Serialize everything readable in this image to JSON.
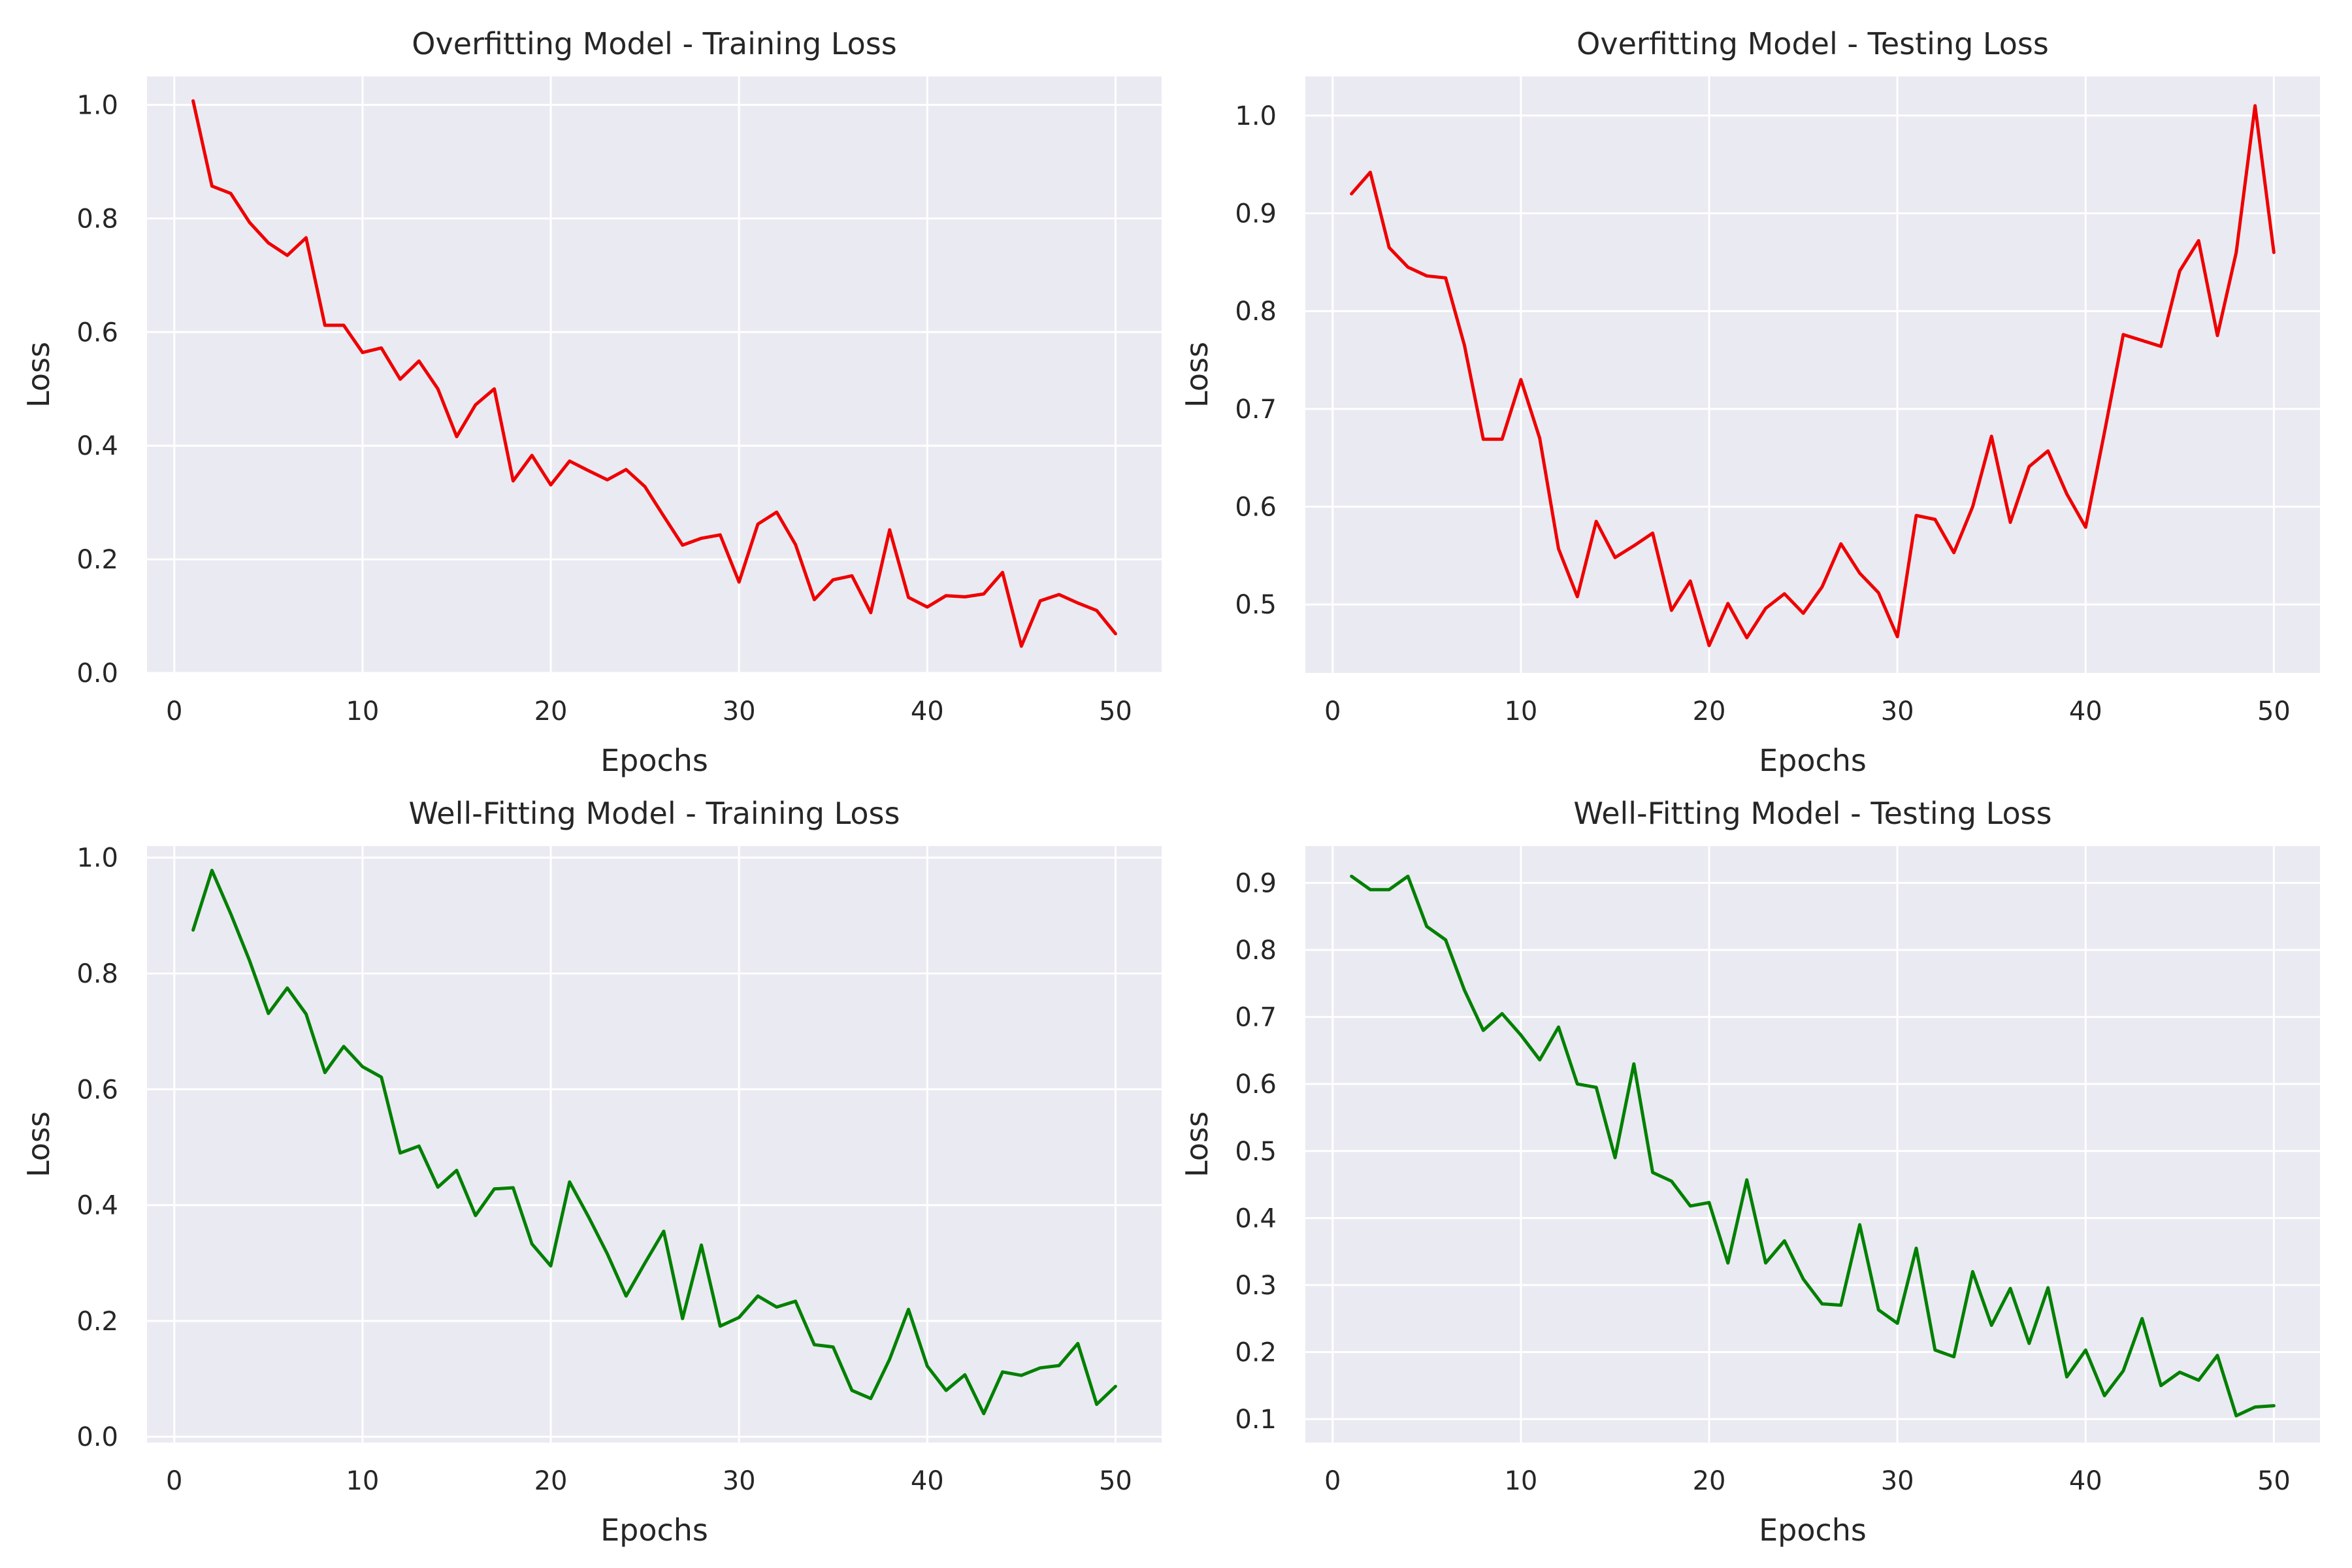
{
  "chart_data": [
    {
      "type": "line",
      "title": "Overfitting Model - Training Loss",
      "xlabel": "Epochs",
      "ylabel": "Loss",
      "xlim": [
        -1.45,
        52.45
      ],
      "ylim": [
        0.0,
        1.05
      ],
      "xticks": [
        0,
        10,
        20,
        30,
        40,
        50
      ],
      "yticks": [
        0.0,
        0.2,
        0.4,
        0.6,
        0.8,
        1.0
      ],
      "ytick_labels": [
        "0.0",
        "0.2",
        "0.4",
        "0.6",
        "0.8",
        "1.0"
      ],
      "grid": true,
      "color": "#ee0000",
      "x": [
        1,
        2,
        3,
        4,
        5,
        6,
        7,
        8,
        9,
        10,
        11,
        12,
        13,
        14,
        15,
        16,
        17,
        18,
        19,
        20,
        21,
        22,
        23,
        24,
        25,
        26,
        27,
        28,
        29,
        30,
        31,
        32,
        33,
        34,
        35,
        36,
        37,
        38,
        39,
        40,
        41,
        42,
        43,
        44,
        45,
        46,
        47,
        48,
        49,
        50
      ],
      "values": [
        1.007,
        0.857,
        0.844,
        0.793,
        0.757,
        0.735,
        0.766,
        0.612,
        0.612,
        0.564,
        0.572,
        0.517,
        0.549,
        0.5,
        0.416,
        0.472,
        0.5,
        0.338,
        0.383,
        0.331,
        0.373,
        0.356,
        0.34,
        0.358,
        0.328,
        0.276,
        0.225,
        0.237,
        0.243,
        0.16,
        0.262,
        0.283,
        0.226,
        0.129,
        0.164,
        0.171,
        0.106,
        0.252,
        0.133,
        0.116,
        0.136,
        0.134,
        0.139,
        0.177,
        0.047,
        0.127,
        0.138,
        0.123,
        0.11,
        0.069
      ]
    },
    {
      "type": "line",
      "title": "Overfitting Model - Testing Loss",
      "xlabel": "Epochs",
      "ylabel": "Loss",
      "xlim": [
        -1.45,
        52.45
      ],
      "ylim": [
        0.43,
        1.04
      ],
      "xticks": [
        0,
        10,
        20,
        30,
        40,
        50
      ],
      "yticks": [
        0.5,
        0.6,
        0.7,
        0.8,
        0.9,
        1.0
      ],
      "ytick_labels": [
        "0.5",
        "0.6",
        "0.7",
        "0.8",
        "0.9",
        "1.0"
      ],
      "grid": true,
      "color": "#ee0000",
      "x": [
        1,
        2,
        3,
        4,
        5,
        6,
        7,
        8,
        9,
        10,
        11,
        12,
        13,
        14,
        15,
        16,
        17,
        18,
        19,
        20,
        21,
        22,
        23,
        24,
        25,
        26,
        27,
        28,
        29,
        30,
        31,
        32,
        33,
        34,
        35,
        36,
        37,
        38,
        39,
        40,
        41,
        42,
        43,
        44,
        45,
        46,
        47,
        48,
        49,
        50
      ],
      "values": [
        0.92,
        0.942,
        0.865,
        0.845,
        0.836,
        0.834,
        0.765,
        0.669,
        0.669,
        0.73,
        0.67,
        0.557,
        0.508,
        0.585,
        0.548,
        0.56,
        0.573,
        0.494,
        0.524,
        0.458,
        0.501,
        0.466,
        0.496,
        0.511,
        0.491,
        0.518,
        0.562,
        0.532,
        0.512,
        0.467,
        0.591,
        0.587,
        0.553,
        0.6,
        0.672,
        0.584,
        0.641,
        0.657,
        0.613,
        0.579,
        0.676,
        0.776,
        0.77,
        0.764,
        0.841,
        0.872,
        0.775,
        0.86,
        1.01,
        0.86
      ]
    },
    {
      "type": "line",
      "title": "Well-Fitting Model - Training Loss",
      "xlabel": "Epochs",
      "ylabel": "Loss",
      "xlim": [
        -1.45,
        52.45
      ],
      "ylim": [
        -0.01,
        1.02
      ],
      "xticks": [
        0,
        10,
        20,
        30,
        40,
        50
      ],
      "yticks": [
        0.0,
        0.2,
        0.4,
        0.6,
        0.8,
        1.0
      ],
      "ytick_labels": [
        "0.0",
        "0.2",
        "0.4",
        "0.6",
        "0.8",
        "1.0"
      ],
      "grid": true,
      "color": "#008000",
      "x": [
        1,
        2,
        3,
        4,
        5,
        6,
        7,
        8,
        9,
        10,
        11,
        12,
        13,
        14,
        15,
        16,
        17,
        18,
        19,
        20,
        21,
        22,
        23,
        24,
        25,
        26,
        27,
        28,
        29,
        30,
        31,
        32,
        33,
        34,
        35,
        36,
        37,
        38,
        39,
        40,
        41,
        42,
        43,
        44,
        45,
        46,
        47,
        48,
        49,
        50
      ],
      "values": [
        0.875,
        0.978,
        0.903,
        0.822,
        0.731,
        0.775,
        0.73,
        0.629,
        0.674,
        0.639,
        0.621,
        0.49,
        0.502,
        0.431,
        0.46,
        0.382,
        0.428,
        0.43,
        0.333,
        0.295,
        0.44,
        0.38,
        0.316,
        0.243,
        0.3,
        0.355,
        0.204,
        0.331,
        0.191,
        0.206,
        0.243,
        0.224,
        0.234,
        0.159,
        0.155,
        0.08,
        0.066,
        0.134,
        0.22,
        0.122,
        0.08,
        0.107,
        0.04,
        0.112,
        0.106,
        0.119,
        0.123,
        0.161,
        0.056,
        0.087
      ]
    },
    {
      "type": "line",
      "title": "Well-Fitting Model - Testing Loss",
      "xlabel": "Epochs",
      "ylabel": "Loss",
      "xlim": [
        -1.45,
        52.45
      ],
      "ylim": [
        0.065,
        0.955
      ],
      "xticks": [
        0,
        10,
        20,
        30,
        40,
        50
      ],
      "yticks": [
        0.1,
        0.2,
        0.3,
        0.4,
        0.5,
        0.6,
        0.7,
        0.8,
        0.9
      ],
      "ytick_labels": [
        "0.1",
        "0.2",
        "0.3",
        "0.4",
        "0.5",
        "0.6",
        "0.7",
        "0.8",
        "0.9"
      ],
      "grid": true,
      "color": "#008000",
      "x": [
        1,
        2,
        3,
        4,
        5,
        6,
        7,
        8,
        9,
        10,
        11,
        12,
        13,
        14,
        15,
        16,
        17,
        18,
        19,
        20,
        21,
        22,
        23,
        24,
        25,
        26,
        27,
        28,
        29,
        30,
        31,
        32,
        33,
        34,
        35,
        36,
        37,
        38,
        39,
        40,
        41,
        42,
        43,
        44,
        45,
        46,
        47,
        48,
        49,
        50
      ],
      "values": [
        0.91,
        0.89,
        0.89,
        0.91,
        0.835,
        0.815,
        0.74,
        0.68,
        0.705,
        0.673,
        0.636,
        0.685,
        0.6,
        0.595,
        0.49,
        0.63,
        0.468,
        0.455,
        0.418,
        0.423,
        0.333,
        0.457,
        0.333,
        0.366,
        0.309,
        0.272,
        0.27,
        0.39,
        0.263,
        0.243,
        0.355,
        0.203,
        0.193,
        0.32,
        0.24,
        0.295,
        0.213,
        0.296,
        0.163,
        0.203,
        0.135,
        0.172,
        0.25,
        0.15,
        0.17,
        0.158,
        0.195,
        0.105,
        0.118,
        0.12
      ]
    }
  ]
}
